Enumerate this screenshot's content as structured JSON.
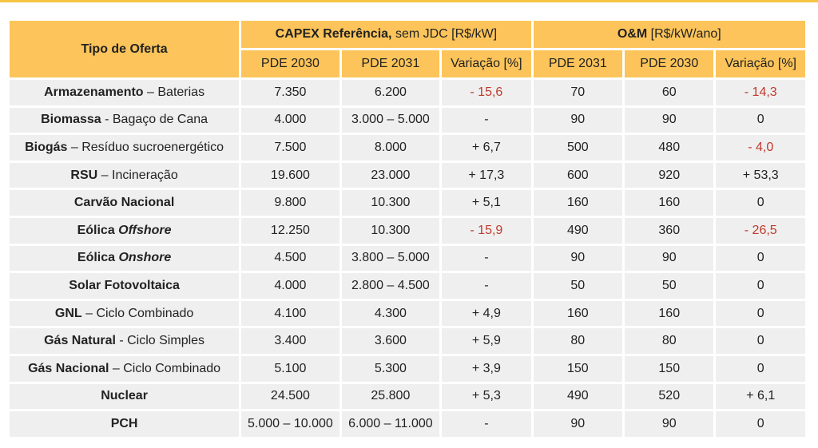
{
  "colors": {
    "header_fill": "#fcc45a",
    "row_fill": "#efefef",
    "negative_text": "#c0392b",
    "top_rule": "#f5c542"
  },
  "header": {
    "type_of_offer": "Tipo de Oferta",
    "capex_group_bold": "CAPEX Referência,",
    "capex_group_rest": " sem JDC [R$/kW]",
    "om_group_bold": "O&M",
    "om_group_rest": " [R$/kW/ano]",
    "capex_cols": [
      "PDE 2030",
      "PDE 2031",
      "Variação [%]"
    ],
    "om_cols": [
      "PDE 2031",
      "PDE 2030",
      "Variação [%]"
    ]
  },
  "rows": [
    {
      "name_bold": "Armazenamento",
      "name_rest": " – Baterias",
      "capex_pde2030": "7.350",
      "capex_pde2031": "6.200",
      "capex_var": "- 15,6",
      "capex_var_neg": true,
      "om_pde2031": "70",
      "om_pde2030": "60",
      "om_var": "- 14,3",
      "om_var_neg": true
    },
    {
      "name_bold": "Biomassa",
      "name_rest": "  - Bagaço de Cana",
      "capex_pde2030": "4.000",
      "capex_pde2031": "3.000 – 5.000",
      "capex_var": "-",
      "capex_var_neg": false,
      "om_pde2031": "90",
      "om_pde2030": "90",
      "om_var": "0",
      "om_var_neg": false
    },
    {
      "name_bold": "Biogás",
      "name_rest": " – Resíduo sucroenergético",
      "capex_pde2030": "7.500",
      "capex_pde2031": "8.000",
      "capex_var": "+ 6,7",
      "capex_var_neg": false,
      "om_pde2031": "500",
      "om_pde2030": "480",
      "om_var": "- 4,0",
      "om_var_neg": true
    },
    {
      "name_bold": "RSU",
      "name_rest": " – Incineração",
      "capex_pde2030": "19.600",
      "capex_pde2031": "23.000",
      "capex_var": "+ 17,3",
      "capex_var_neg": false,
      "om_pde2031": "600",
      "om_pde2030": "920",
      "om_var": "+ 53,3",
      "om_var_neg": false
    },
    {
      "name_bold": "Carvão Nacional",
      "name_rest": "",
      "capex_pde2030": "9.800",
      "capex_pde2031": "10.300",
      "capex_var": "+ 5,1",
      "capex_var_neg": false,
      "om_pde2031": "160",
      "om_pde2030": "160",
      "om_var": "0",
      "om_var_neg": false
    },
    {
      "name_bold": "Eólica ",
      "name_italic": "Offshore",
      "name_rest": "",
      "capex_pde2030": "12.250",
      "capex_pde2031": "10.300",
      "capex_var": "- 15,9",
      "capex_var_neg": true,
      "om_pde2031": "490",
      "om_pde2030": "360",
      "om_var": "- 26,5",
      "om_var_neg": true
    },
    {
      "name_bold": "Eólica ",
      "name_italic": "Onshore",
      "name_rest": "",
      "capex_pde2030": "4.500",
      "capex_pde2031": "3.800 – 5.000",
      "capex_var": "-",
      "capex_var_neg": false,
      "om_pde2031": "90",
      "om_pde2030": "90",
      "om_var": "0",
      "om_var_neg": false
    },
    {
      "name_bold": "Solar Fotovoltaica",
      "name_rest": "",
      "capex_pde2030": "4.000",
      "capex_pde2031": "2.800 – 4.500",
      "capex_var": "-",
      "capex_var_neg": false,
      "om_pde2031": "50",
      "om_pde2030": "50",
      "om_var": "0",
      "om_var_neg": false
    },
    {
      "name_bold": "GNL",
      "name_rest": " – Ciclo Combinado",
      "capex_pde2030": "4.100",
      "capex_pde2031": "4.300",
      "capex_var": "+ 4,9",
      "capex_var_neg": false,
      "om_pde2031": "160",
      "om_pde2030": "160",
      "om_var": "0",
      "om_var_neg": false
    },
    {
      "name_bold": "Gás Natural",
      "name_rest": " - Ciclo Simples",
      "capex_pde2030": "3.400",
      "capex_pde2031": "3.600",
      "capex_var": "+ 5,9",
      "capex_var_neg": false,
      "om_pde2031": "80",
      "om_pde2030": "80",
      "om_var": "0",
      "om_var_neg": false
    },
    {
      "name_bold": "Gás Nacional",
      "name_rest": " – Ciclo Combinado",
      "capex_pde2030": "5.100",
      "capex_pde2031": "5.300",
      "capex_var": "+ 3,9",
      "capex_var_neg": false,
      "om_pde2031": "150",
      "om_pde2030": "150",
      "om_var": "0",
      "om_var_neg": false
    },
    {
      "name_bold": "Nuclear",
      "name_rest": "",
      "capex_pde2030": "24.500",
      "capex_pde2031": "25.800",
      "capex_var": "+ 5,3",
      "capex_var_neg": false,
      "om_pde2031": "490",
      "om_pde2030": "520",
      "om_var": "+ 6,1",
      "om_var_neg": false
    },
    {
      "name_bold": "PCH",
      "name_rest": "",
      "capex_pde2030": "5.000 – 10.000",
      "capex_pde2031": "6.000 – 11.000",
      "capex_var": "-",
      "capex_var_neg": false,
      "om_pde2031": "90",
      "om_pde2030": "90",
      "om_var": "0",
      "om_var_neg": false
    }
  ]
}
